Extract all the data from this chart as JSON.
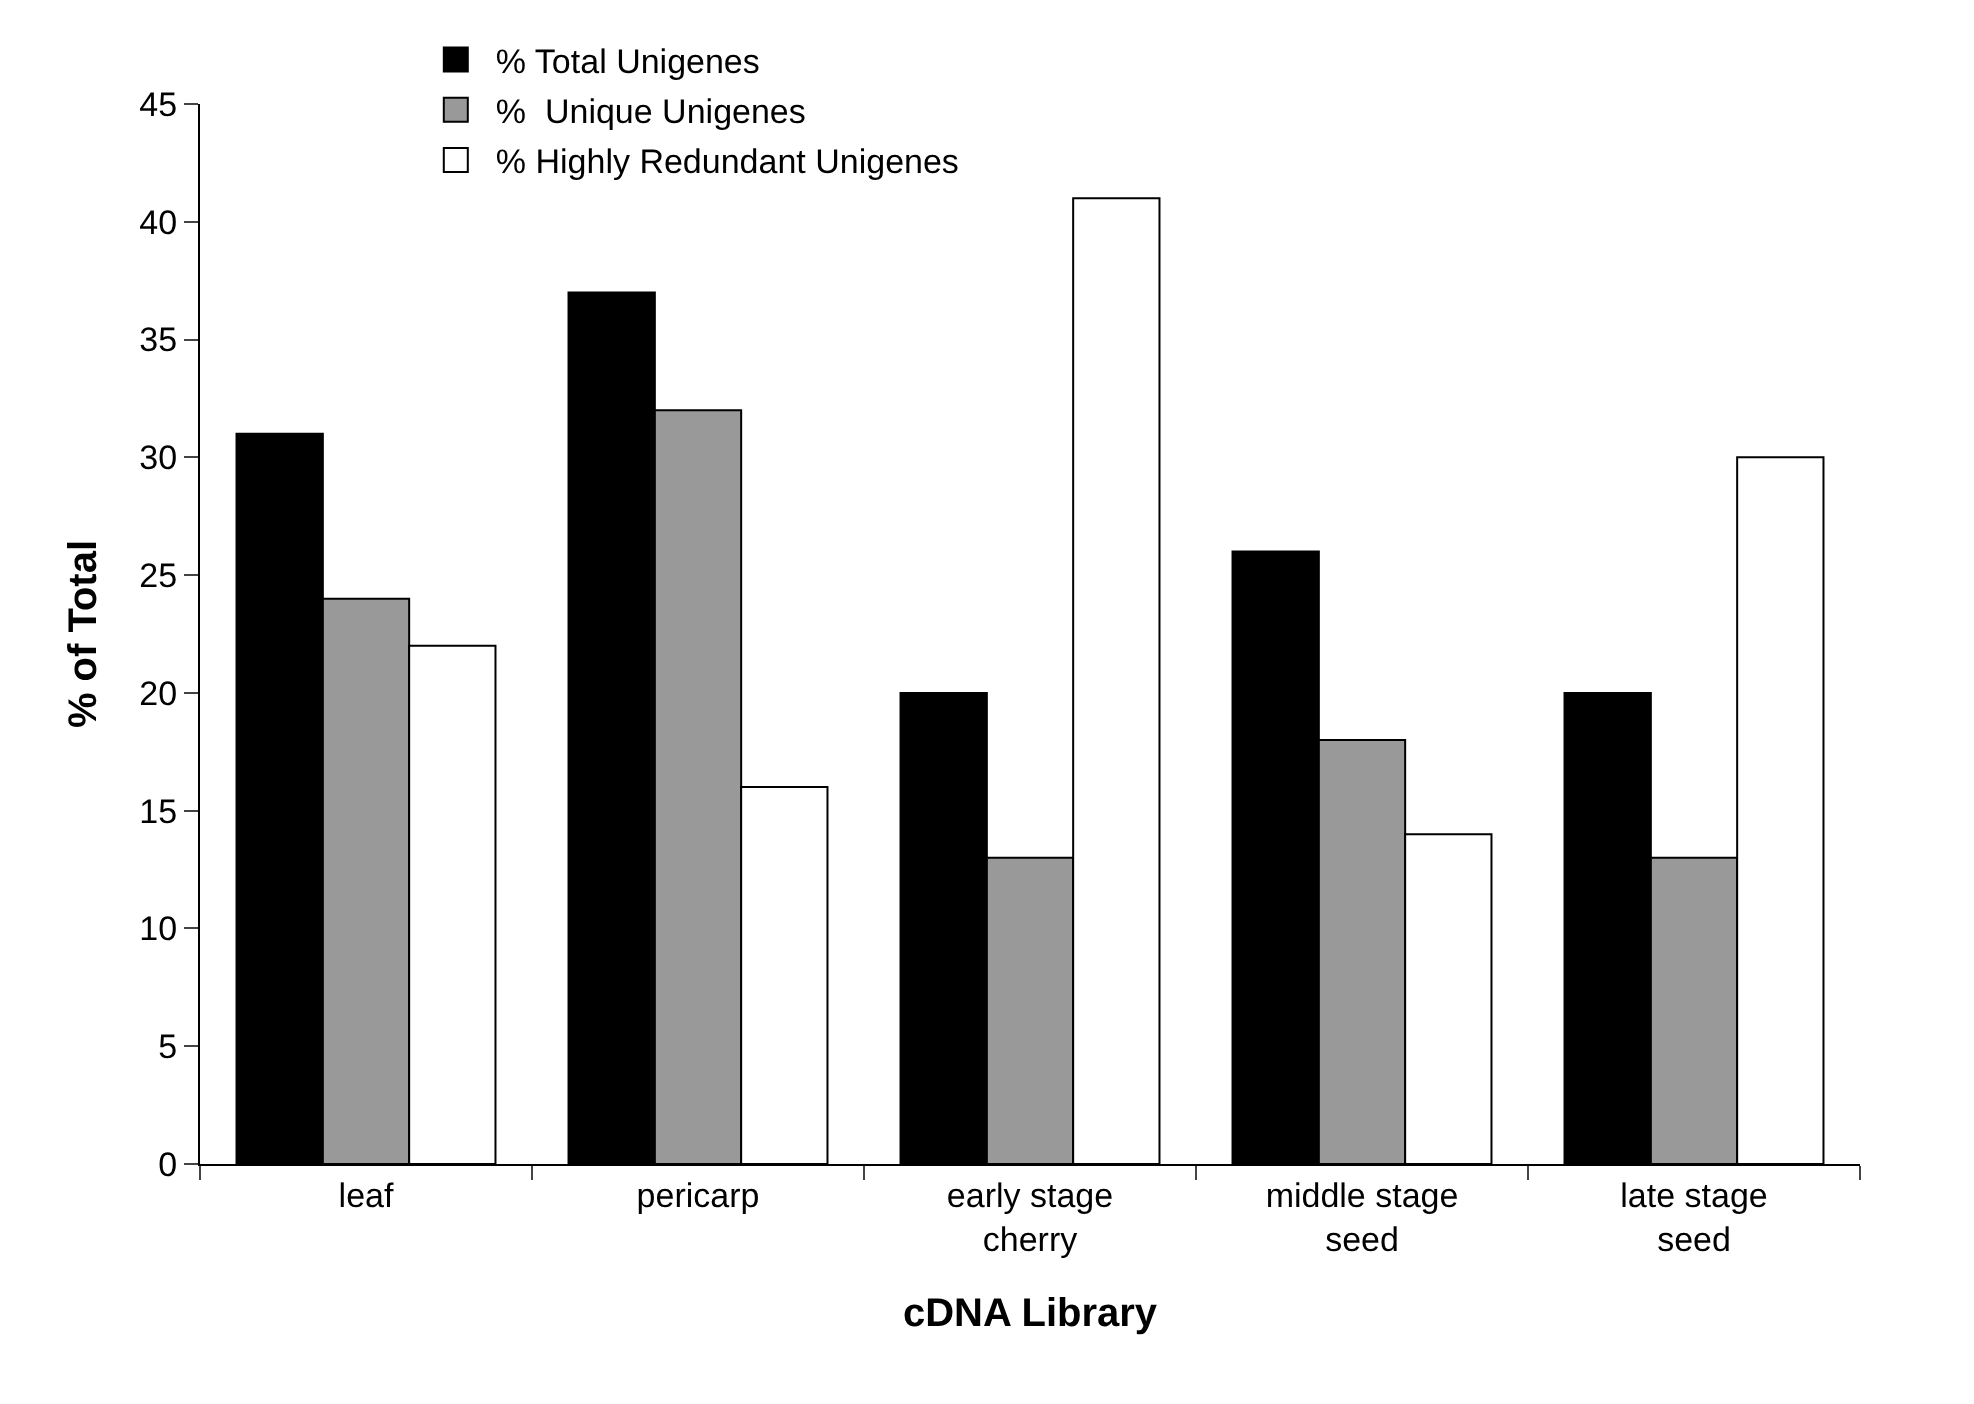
{
  "chart_data": {
    "type": "bar",
    "xlabel": "cDNA Library",
    "ylabel": "% of Total",
    "categories": [
      "leaf",
      "pericarp",
      "early stage cherry",
      "middle stage seed",
      "late stage seed"
    ],
    "series": [
      {
        "name": "% Total Unigenes",
        "color": "#000000",
        "values": [
          31,
          37,
          20,
          26,
          20
        ]
      },
      {
        "name": "%  Unique Unigenes",
        "color": "#999999",
        "values": [
          24,
          32,
          13,
          18,
          13
        ]
      },
      {
        "name": "% Highly Redundant Unigenes",
        "color": "#ffffff",
        "values": [
          22,
          16,
          41,
          14,
          30
        ]
      }
    ],
    "ylim": [
      0,
      45
    ],
    "yticks": [
      0,
      5,
      10,
      15,
      20,
      25,
      30,
      35,
      40,
      45
    ],
    "grid": false,
    "legend": "top left"
  }
}
